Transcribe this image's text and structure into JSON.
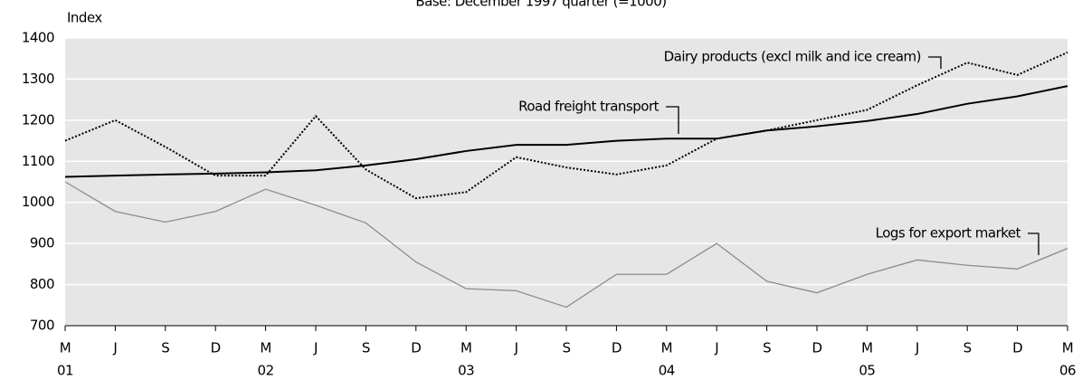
{
  "chart_data": {
    "type": "line",
    "subtitle": "Base: December 1997 quarter (=1000)",
    "y_label": "Index",
    "categories": [
      "M",
      "J",
      "S",
      "D",
      "M",
      "J",
      "S",
      "D",
      "M",
      "J",
      "S",
      "D",
      "M",
      "J",
      "S",
      "D",
      "M",
      "J",
      "S",
      "D",
      "M"
    ],
    "category_years": [
      "01",
      null,
      null,
      null,
      "02",
      null,
      null,
      null,
      "03",
      null,
      null,
      null,
      "04",
      null,
      null,
      null,
      "05",
      null,
      null,
      null,
      "06"
    ],
    "series": [
      {
        "name": "Dairy products (excl milk and ice cream)",
        "color": "#000000",
        "linestyle": "dotted",
        "values": [
          1150,
          1200,
          1135,
          1065,
          1065,
          1210,
          1080,
          1010,
          1025,
          1110,
          1085,
          1068,
          1090,
          1155,
          1175,
          1200,
          1225,
          1285,
          1340,
          1310,
          1365
        ]
      },
      {
        "name": "Road freight transport",
        "color": "#000000",
        "linestyle": "solid",
        "values": [
          1062,
          1065,
          1068,
          1070,
          1073,
          1078,
          1090,
          1105,
          1125,
          1140,
          1140,
          1150,
          1155,
          1155,
          1175,
          1185,
          1198,
          1215,
          1240,
          1258,
          1283
        ]
      },
      {
        "name": "Logs for export market",
        "color": "#8c8c8c",
        "linestyle": "solid",
        "values": [
          1050,
          978,
          952,
          978,
          1032,
          993,
          950,
          855,
          790,
          785,
          745,
          825,
          825,
          900,
          808,
          780,
          825,
          860,
          847,
          838,
          888
        ]
      }
    ],
    "ylim": [
      700,
      1400
    ],
    "yticks": [
      700,
      800,
      900,
      1000,
      1100,
      1200,
      1300,
      1400
    ],
    "grid": true,
    "background": "#e6e6e6"
  }
}
